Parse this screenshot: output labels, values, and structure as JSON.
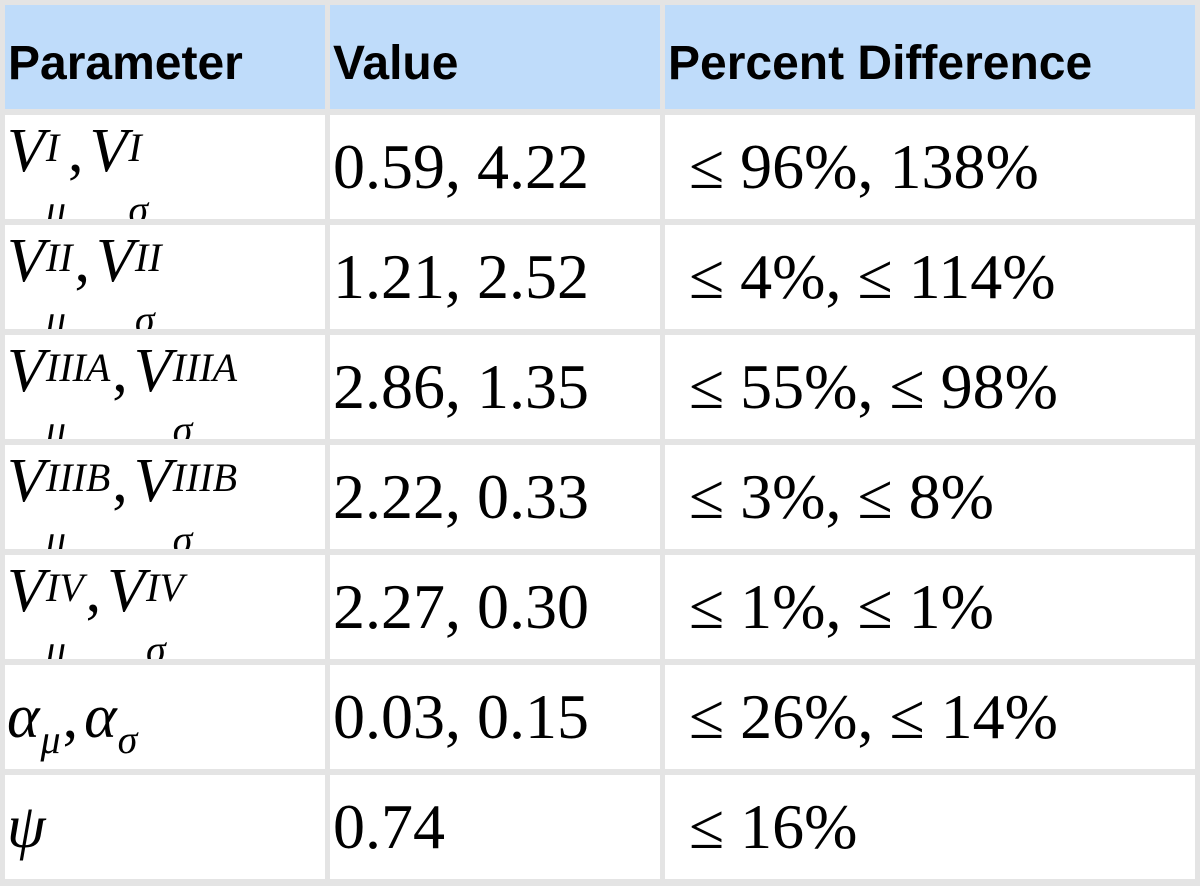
{
  "table": {
    "headers": [
      "Parameter",
      "Value",
      "Percent Difference"
    ],
    "rows": [
      {
        "param": {
          "sup": "I",
          "type": "V"
        },
        "value": "0.59, 4.22",
        "pct": "≤ 96%, 138%"
      },
      {
        "param": {
          "sup": "II",
          "type": "V"
        },
        "value": "1.21, 2.52",
        "pct": "≤ 4%,  ≤ 114%"
      },
      {
        "param": {
          "sup": "IIIA",
          "type": "V"
        },
        "value": "2.86, 1.35",
        "pct": "≤ 55%,  ≤ 98%"
      },
      {
        "param": {
          "sup": "IIIB",
          "type": "V"
        },
        "value": "2.22, 0.33",
        "pct": "≤ 3%,  ≤ 8%"
      },
      {
        "param": {
          "sup": "IV",
          "type": "V"
        },
        "value": "2.27,  0.30",
        "pct": "≤ 1%,  ≤ 1%"
      },
      {
        "param": {
          "base": "α",
          "type": "alpha"
        },
        "value": "0.03,  0.15",
        "pct": "≤ 26%,  ≤ 14%"
      },
      {
        "param": {
          "base": "ψ",
          "type": "psi"
        },
        "value": "0.74",
        "pct": "≤ 16%"
      }
    ],
    "symbols": {
      "base": "V",
      "mu": "μ",
      "sigma": "σ",
      "comma": ","
    }
  }
}
